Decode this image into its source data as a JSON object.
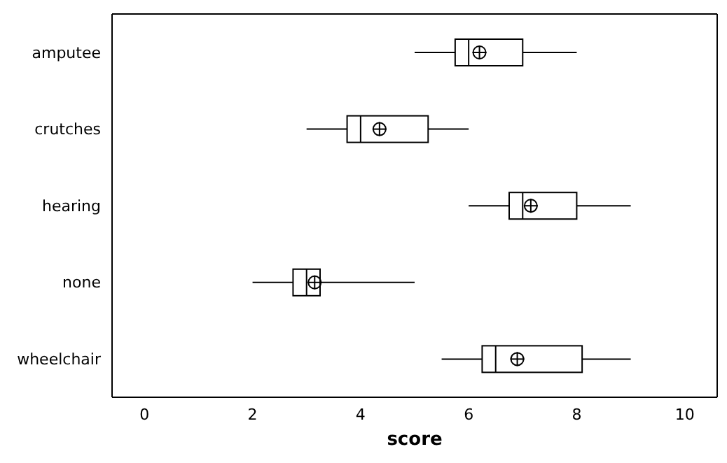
{
  "chart_data": {
    "type": "box",
    "orientation": "horizontal",
    "xlabel": "score",
    "categories": [
      "amputee",
      "crutches",
      "hearing",
      "none",
      "wheelchair"
    ],
    "boxes": [
      {
        "low": 5,
        "q1": 5.75,
        "median": 6,
        "q3": 7,
        "high": 8,
        "mean": 6.2
      },
      {
        "low": 3,
        "q1": 3.75,
        "median": 4,
        "q3": 5.25,
        "high": 6,
        "mean": 4.35
      },
      {
        "low": 6,
        "q1": 6.75,
        "median": 7,
        "q3": 8,
        "high": 9,
        "mean": 7.15
      },
      {
        "low": 2,
        "q1": 2.75,
        "median": 3,
        "q3": 3.25,
        "high": 5,
        "mean": 3.15
      },
      {
        "low": 5.5,
        "q1": 6.25,
        "median": 6.5,
        "q3": 8.1,
        "high": 9,
        "mean": 6.9
      }
    ],
    "xlim": [
      -0.6,
      10.6
    ],
    "xticks": [
      0,
      2,
      4,
      6,
      8,
      10
    ]
  }
}
